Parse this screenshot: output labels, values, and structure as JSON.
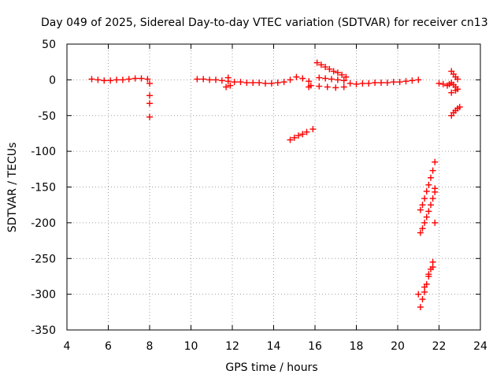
{
  "chart_data": {
    "type": "scatter",
    "title": "Day 049 of 2025, Sidereal Day-to-day VTEC variation (SDTVAR) for receiver cn13",
    "xlabel": "GPS time / hours",
    "ylabel": "SDTVAR / TECUs",
    "xlim": [
      4,
      24
    ],
    "ylim": [
      -350,
      50
    ],
    "xticks": [
      4,
      6,
      8,
      10,
      12,
      14,
      16,
      18,
      20,
      22,
      24
    ],
    "yticks": [
      50,
      0,
      -50,
      -100,
      -150,
      -200,
      -250,
      -300,
      -350
    ],
    "xtick_labels": [
      "4",
      "6",
      "8",
      "10",
      "12",
      "14",
      "16",
      "18",
      "20",
      "22",
      "24"
    ],
    "ytick_labels": [
      "50",
      "0",
      "-50",
      "-100",
      "-150",
      "-200",
      "-250",
      "-300",
      "-350"
    ],
    "grid": true,
    "marker": "+",
    "series": [
      {
        "name": "SDTVAR",
        "color": "#ff0000",
        "points": [
          [
            5.2,
            1
          ],
          [
            5.5,
            0
          ],
          [
            5.8,
            -1
          ],
          [
            6.1,
            -1
          ],
          [
            6.4,
            0
          ],
          [
            6.7,
            0
          ],
          [
            7.0,
            1
          ],
          [
            7.3,
            2
          ],
          [
            7.6,
            2
          ],
          [
            7.9,
            1
          ],
          [
            8.0,
            -5
          ],
          [
            8.0,
            -22
          ],
          [
            8.0,
            -33
          ],
          [
            8.0,
            -52
          ],
          [
            10.3,
            1
          ],
          [
            10.6,
            1
          ],
          [
            10.9,
            0
          ],
          [
            11.2,
            0
          ],
          [
            11.5,
            -1
          ],
          [
            11.8,
            -2
          ],
          [
            12.1,
            -3
          ],
          [
            12.4,
            -3
          ],
          [
            12.7,
            -4
          ],
          [
            13.0,
            -4
          ],
          [
            13.3,
            -4
          ],
          [
            13.6,
            -5
          ],
          [
            13.9,
            -5
          ],
          [
            14.2,
            -4
          ],
          [
            14.5,
            -3
          ],
          [
            14.8,
            0
          ],
          [
            15.1,
            4
          ],
          [
            15.4,
            2
          ],
          [
            15.7,
            -2
          ],
          [
            11.7,
            -10
          ],
          [
            11.9,
            -8
          ],
          [
            11.8,
            3
          ],
          [
            15.7,
            -10
          ],
          [
            15.8,
            -8
          ],
          [
            14.8,
            -84
          ],
          [
            15.0,
            -81
          ],
          [
            15.2,
            -78
          ],
          [
            15.4,
            -76
          ],
          [
            15.6,
            -73
          ],
          [
            15.9,
            -69
          ],
          [
            16.1,
            24
          ],
          [
            16.3,
            21
          ],
          [
            16.5,
            18
          ],
          [
            16.7,
            15
          ],
          [
            16.9,
            12
          ],
          [
            17.1,
            10
          ],
          [
            17.3,
            7
          ],
          [
            17.5,
            4
          ],
          [
            16.2,
            3
          ],
          [
            16.5,
            2
          ],
          [
            16.8,
            1
          ],
          [
            17.1,
            0
          ],
          [
            17.4,
            -1
          ],
          [
            16.2,
            -9
          ],
          [
            16.6,
            -10
          ],
          [
            17.0,
            -11
          ],
          [
            17.4,
            -10
          ],
          [
            17.7,
            -5
          ],
          [
            18.0,
            -6
          ],
          [
            18.3,
            -5
          ],
          [
            18.6,
            -5
          ],
          [
            18.9,
            -4
          ],
          [
            19.2,
            -4
          ],
          [
            19.5,
            -4
          ],
          [
            19.8,
            -3
          ],
          [
            20.1,
            -3
          ],
          [
            20.4,
            -2
          ],
          [
            20.7,
            -1
          ],
          [
            21.0,
            0
          ],
          [
            21.1,
            -182
          ],
          [
            21.2,
            -175
          ],
          [
            21.3,
            -166
          ],
          [
            21.4,
            -156
          ],
          [
            21.5,
            -147
          ],
          [
            21.6,
            -137
          ],
          [
            21.7,
            -127
          ],
          [
            21.1,
            -214
          ],
          [
            21.2,
            -208
          ],
          [
            21.3,
            -200
          ],
          [
            21.4,
            -192
          ],
          [
            21.5,
            -184
          ],
          [
            21.6,
            -175
          ],
          [
            21.7,
            -166
          ],
          [
            21.1,
            -318
          ],
          [
            21.2,
            -307
          ],
          [
            21.3,
            -297
          ],
          [
            21.4,
            -286
          ],
          [
            21.5,
            -275
          ],
          [
            21.6,
            -265
          ],
          [
            21.7,
            -255
          ],
          [
            21.0,
            -300
          ],
          [
            21.3,
            -290
          ],
          [
            21.5,
            -272
          ],
          [
            21.8,
            -115
          ],
          [
            21.8,
            -152
          ],
          [
            21.8,
            -157
          ],
          [
            21.8,
            -200
          ],
          [
            21.7,
            -262
          ],
          [
            22.0,
            -5
          ],
          [
            22.2,
            -6
          ],
          [
            22.4,
            -8
          ],
          [
            22.5,
            -6
          ],
          [
            22.6,
            12
          ],
          [
            22.7,
            8
          ],
          [
            22.8,
            4
          ],
          [
            22.9,
            1
          ],
          [
            22.6,
            -4
          ],
          [
            22.7,
            -7
          ],
          [
            22.8,
            -10
          ],
          [
            22.9,
            -13
          ],
          [
            22.6,
            -18
          ],
          [
            22.8,
            -15
          ],
          [
            22.6,
            -50
          ],
          [
            22.7,
            -46
          ],
          [
            22.8,
            -43
          ],
          [
            22.9,
            -40
          ],
          [
            23.0,
            -38
          ]
        ]
      }
    ]
  }
}
